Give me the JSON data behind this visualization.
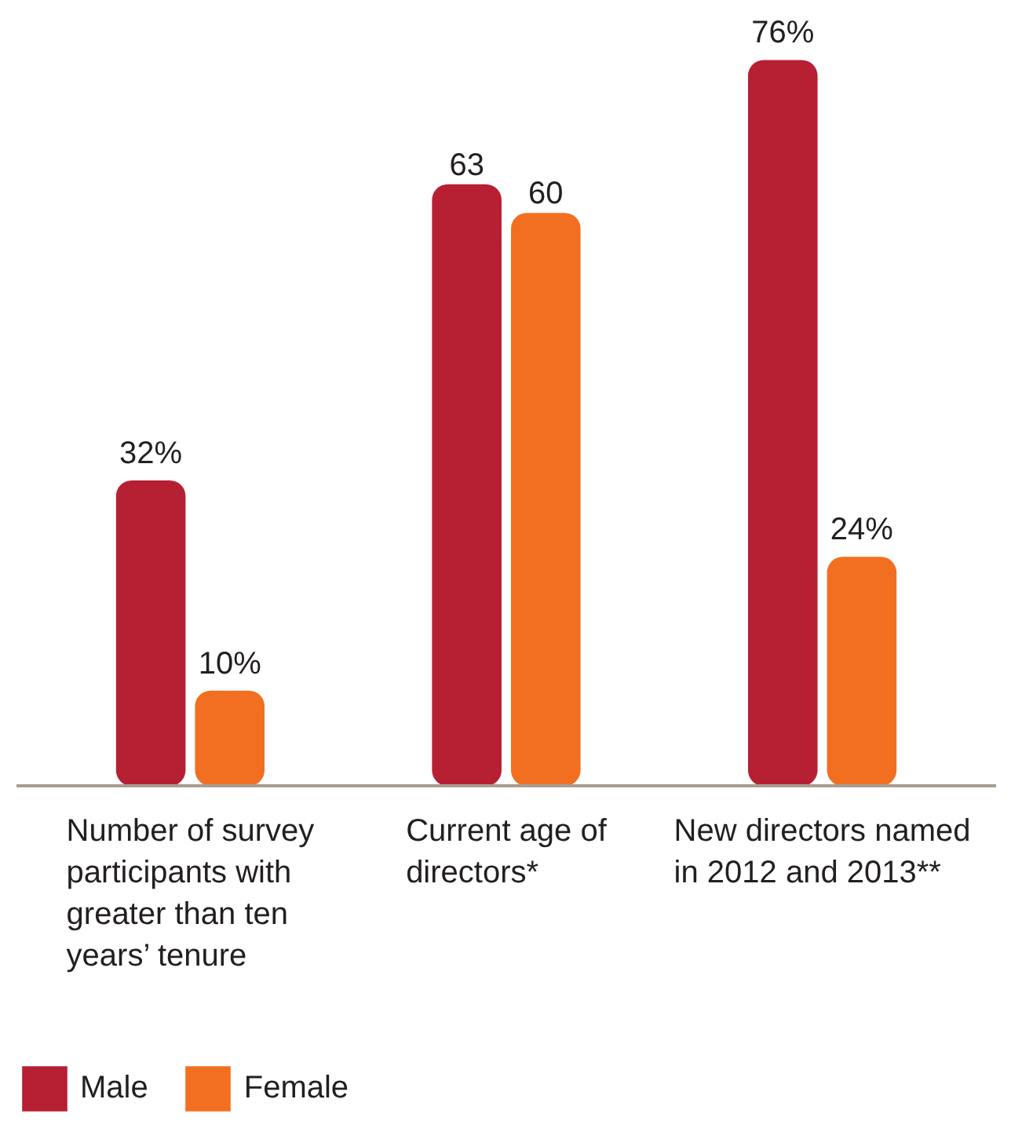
{
  "chart_data": {
    "type": "bar",
    "categories": [
      "Number of survey participants with greater than ten years’ tenure",
      "Current age of directors*",
      "New directors named in 2012 and 2013**"
    ],
    "series": [
      {
        "name": "Male",
        "color": "#b71f33",
        "values": [
          32,
          63,
          76
        ],
        "value_labels": [
          "32%",
          "63",
          "76%"
        ]
      },
      {
        "name": "Female",
        "color": "#f26f21",
        "values": [
          10,
          60,
          24
        ],
        "value_labels": [
          "10%",
          "60",
          "24%"
        ]
      }
    ],
    "legend": "bottom left",
    "grid": false,
    "tick_labels": "x"
  }
}
